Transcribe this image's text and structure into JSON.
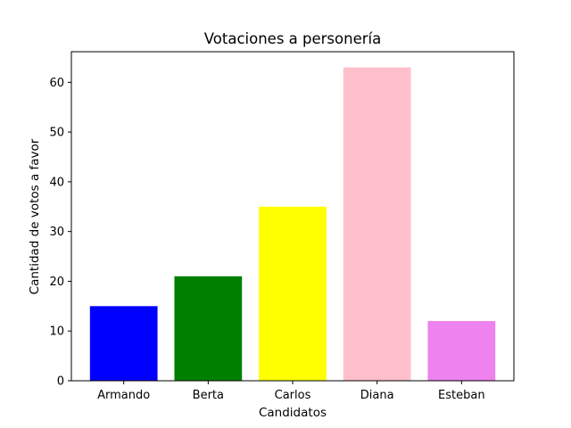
{
  "chart_data": {
    "type": "bar",
    "title": "Votaciones a personería",
    "xlabel": "Candidatos",
    "ylabel": "Cantidad de votos a favor",
    "categories": [
      "Armando",
      "Berta",
      "Carlos",
      "Diana",
      "Esteban"
    ],
    "values": [
      15,
      21,
      35,
      63,
      12
    ],
    "colors": [
      "#0000ff",
      "#008000",
      "#ffff00",
      "#ffc0cb",
      "#ee82ee"
    ],
    "ylim": [
      0,
      66.15
    ],
    "yticks": [
      0,
      10,
      20,
      30,
      40,
      50,
      60
    ],
    "grid": false,
    "legend": "none"
  }
}
